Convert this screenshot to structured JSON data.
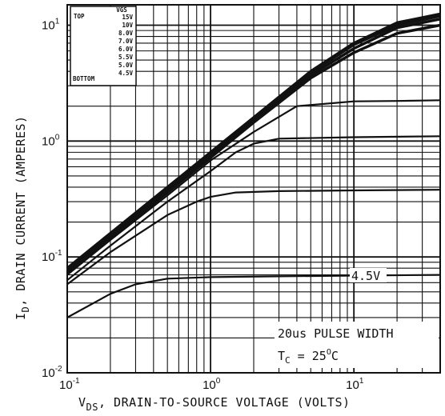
{
  "chart_data": {
    "type": "line",
    "title": "",
    "xlabel": {
      "prefix": "V",
      "sub": "DS",
      "text": ", DRAIN-TO-SOURCE VOLTAGE (VOLTS)"
    },
    "ylabel": {
      "prefix": "I",
      "sub": "D",
      "text": ", DRAIN CURRENT (AMPERES)"
    },
    "x_scale": "log",
    "y_scale": "log",
    "xlim": [
      0.1,
      40
    ],
    "ylim": [
      0.01,
      15
    ],
    "x_ticks": [
      {
        "value": 0.1,
        "base": "10",
        "exp": "-1"
      },
      {
        "value": 1,
        "base": "10",
        "exp": "0"
      },
      {
        "value": 10,
        "base": "10",
        "exp": "1"
      }
    ],
    "y_ticks": [
      {
        "value": 0.01,
        "base": "10",
        "exp": "-2"
      },
      {
        "value": 0.1,
        "base": "10",
        "exp": "-1"
      },
      {
        "value": 1,
        "base": "10",
        "exp": "0"
      },
      {
        "value": 10,
        "base": "10",
        "exp": "1"
      }
    ],
    "grid": true,
    "legend": {
      "placement": "top-left",
      "header_left": "TOP",
      "header_right": "VGS",
      "rows": [
        "15V",
        "10V",
        "8.0V",
        "7.0V",
        "6.0V",
        "5.5V",
        "5.0V",
        "4.5V"
      ],
      "bottom_label": "BOTTOM"
    },
    "series": [
      {
        "label": "15V",
        "x": [
          0.1,
          0.2,
          0.5,
          1,
          2,
          5,
          10,
          20,
          40
        ],
        "y": [
          0.08,
          0.16,
          0.4,
          0.8,
          1.6,
          4.0,
          7.0,
          10.5,
          12.5
        ]
      },
      {
        "label": "10V",
        "x": [
          0.1,
          0.2,
          0.5,
          1,
          2,
          5,
          10,
          20,
          40
        ],
        "y": [
          0.078,
          0.156,
          0.39,
          0.78,
          1.56,
          3.9,
          6.8,
          10.0,
          12.0
        ]
      },
      {
        "label": "8.0V",
        "x": [
          0.1,
          0.2,
          0.5,
          1,
          2,
          5,
          10,
          20,
          40
        ],
        "y": [
          0.075,
          0.15,
          0.37,
          0.75,
          1.5,
          3.7,
          6.3,
          9.5,
          11.3
        ]
      },
      {
        "label": "7.0V",
        "x": [
          0.1,
          0.2,
          0.5,
          1,
          2,
          5,
          10,
          20,
          40
        ],
        "y": [
          0.072,
          0.145,
          0.36,
          0.72,
          1.45,
          3.5,
          5.8,
          8.5,
          10.0
        ]
      },
      {
        "label": "6.0V",
        "x": [
          0.1,
          0.2,
          0.5,
          1,
          2,
          4,
          10,
          20,
          40
        ],
        "y": [
          0.07,
          0.14,
          0.34,
          0.68,
          1.2,
          2.0,
          2.2,
          2.22,
          2.25
        ]
      },
      {
        "label": "5.5V",
        "x": [
          0.1,
          0.2,
          0.5,
          1,
          1.5,
          2,
          3,
          10,
          40
        ],
        "y": [
          0.063,
          0.125,
          0.3,
          0.55,
          0.8,
          0.95,
          1.05,
          1.08,
          1.1
        ]
      },
      {
        "label": "5.0V",
        "x": [
          0.1,
          0.2,
          0.5,
          0.8,
          1,
          1.5,
          3,
          10,
          40
        ],
        "y": [
          0.058,
          0.11,
          0.23,
          0.3,
          0.33,
          0.36,
          0.37,
          0.375,
          0.38
        ]
      },
      {
        "label": "4.5V",
        "x": [
          0.1,
          0.2,
          0.3,
          0.5,
          1,
          3,
          10,
          40
        ],
        "y": [
          0.03,
          0.048,
          0.058,
          0.065,
          0.067,
          0.068,
          0.069,
          0.07
        ]
      }
    ],
    "annotations": {
      "curve_label": "4.5V",
      "pulse": "20us PULSE WIDTH",
      "tc": {
        "prefix": "T",
        "sub": "C",
        "value": " = 25",
        "sup": "O",
        "unit": "C"
      }
    }
  }
}
